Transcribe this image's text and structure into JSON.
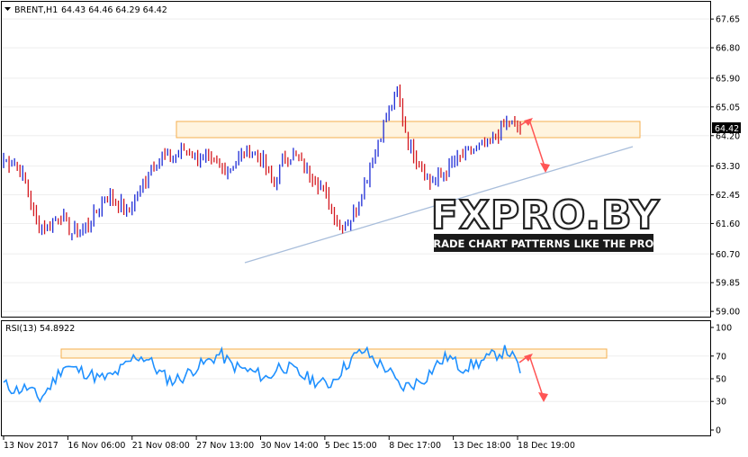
{
  "header": {
    "symbol": "BRENT,H1",
    "ohlc": "64.43 64.46 64.29 64.42",
    "dropdown_icon": "triangle-down-icon"
  },
  "rsi_header": "RSI(13) 54.8922",
  "watermark": {
    "title": "FXPRO.BY",
    "tagline": "TRADE CHART PATTERNS LIKE THE PROS"
  },
  "colors": {
    "up_candle": "#1d2bd6",
    "down_candle": "#d4181f",
    "rsi_line": "#1e90ff",
    "zone_fill": "#fff3dc",
    "zone_border": "#f4a73c",
    "trend_line": "#a9bedb",
    "arrow": "#ff5555",
    "price_label_bg": "#000000"
  },
  "chart_data": [
    {
      "type": "candlestick",
      "symbol": "BRENT",
      "timeframe": "H1",
      "y_ticks": [
        "67.65",
        "66.80",
        "65.90",
        "65.05",
        "64.20",
        "63.30",
        "62.45",
        "61.60",
        "60.70",
        "59.85",
        "59.00"
      ],
      "ylim": [
        58.95,
        68.0
      ],
      "last_price": "64.42",
      "x_ticks": [
        "13 Nov 2017",
        "16 Nov 06:00",
        "21 Nov 08:00",
        "27 Nov 13:00",
        "30 Nov 14:00",
        "5 Dec 15:00",
        "8 Dec 17:00",
        "13 Dec 18:00",
        "18 Dec 19:00"
      ],
      "approx_closes": [
        63.5,
        63.4,
        62.8,
        61.5,
        61.5,
        61.9,
        61.3,
        61.4,
        61.8,
        62.4,
        62.3,
        61.9,
        62.5,
        63.2,
        63.6,
        63.5,
        63.8,
        63.6,
        63.5,
        63.3,
        63.2,
        63.6,
        63.8,
        63.5,
        62.7,
        63.6,
        63.6,
        63.2,
        62.8,
        62.2,
        61.5,
        61.8,
        62.6,
        63.7,
        64.7,
        65.5,
        64.0,
        63.4,
        62.8,
        63.0,
        63.4,
        63.6,
        63.8,
        63.9,
        64.3,
        64.6,
        64.42
      ],
      "resistance_zone": [
        64.25,
        64.75
      ],
      "support_trendline": [
        [
          "13 Dec",
          60.6
        ],
        [
          "end",
          63.85
        ]
      ]
    },
    {
      "type": "line",
      "indicator": "RSI(13)",
      "last_value": "54.8922",
      "y_ticks": [
        "100",
        "70",
        "50",
        "30",
        "0"
      ],
      "ylim": [
        0,
        100
      ],
      "approx_values": [
        45,
        40,
        42,
        32,
        45,
        62,
        58,
        55,
        50,
        52,
        60,
        70,
        68,
        55,
        48,
        52,
        60,
        65,
        72,
        62,
        58,
        55,
        50,
        62,
        58,
        52,
        48,
        44,
        56,
        68,
        75,
        65,
        58,
        42,
        45,
        50,
        62,
        70,
        60,
        62,
        66,
        72,
        75,
        58
      ]
    }
  ]
}
